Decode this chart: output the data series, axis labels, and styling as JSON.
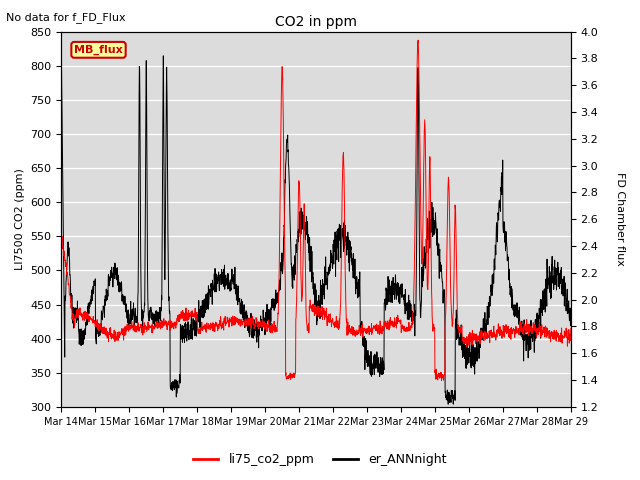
{
  "title": "CO2 in ppm",
  "top_left_text": "No data for f_FD_Flux",
  "ylabel_left": "LI7500 CO2 (ppm)",
  "ylabel_right": "FD Chamber flux",
  "ylim_left": [
    300,
    850
  ],
  "ylim_right": [
    1.2,
    4.0
  ],
  "yticks_left": [
    300,
    350,
    400,
    450,
    500,
    550,
    600,
    650,
    700,
    750,
    800,
    850
  ],
  "yticks_right": [
    1.2,
    1.4,
    1.6,
    1.8,
    2.0,
    2.2,
    2.4,
    2.6,
    2.8,
    3.0,
    3.2,
    3.4,
    3.6,
    3.8,
    4.0
  ],
  "xtick_labels": [
    "Mar 14",
    "Mar 15",
    "Mar 16",
    "Mar 17",
    "Mar 18",
    "Mar 19",
    "Mar 20",
    "Mar 21",
    "Mar 22",
    "Mar 23",
    "Mar 24",
    "Mar 25",
    "Mar 26",
    "Mar 27",
    "Mar 28",
    "Mar 29"
  ],
  "line1_color": "#ff0000",
  "line2_color": "#000000",
  "line1_label": "li75_co2_ppm",
  "line2_label": "er_ANNnight",
  "bg_color": "#dcdcdc",
  "mb_flux_box_color": "#ffff99",
  "mb_flux_text_color": "#cc0000",
  "mb_flux_label": "MB_flux"
}
